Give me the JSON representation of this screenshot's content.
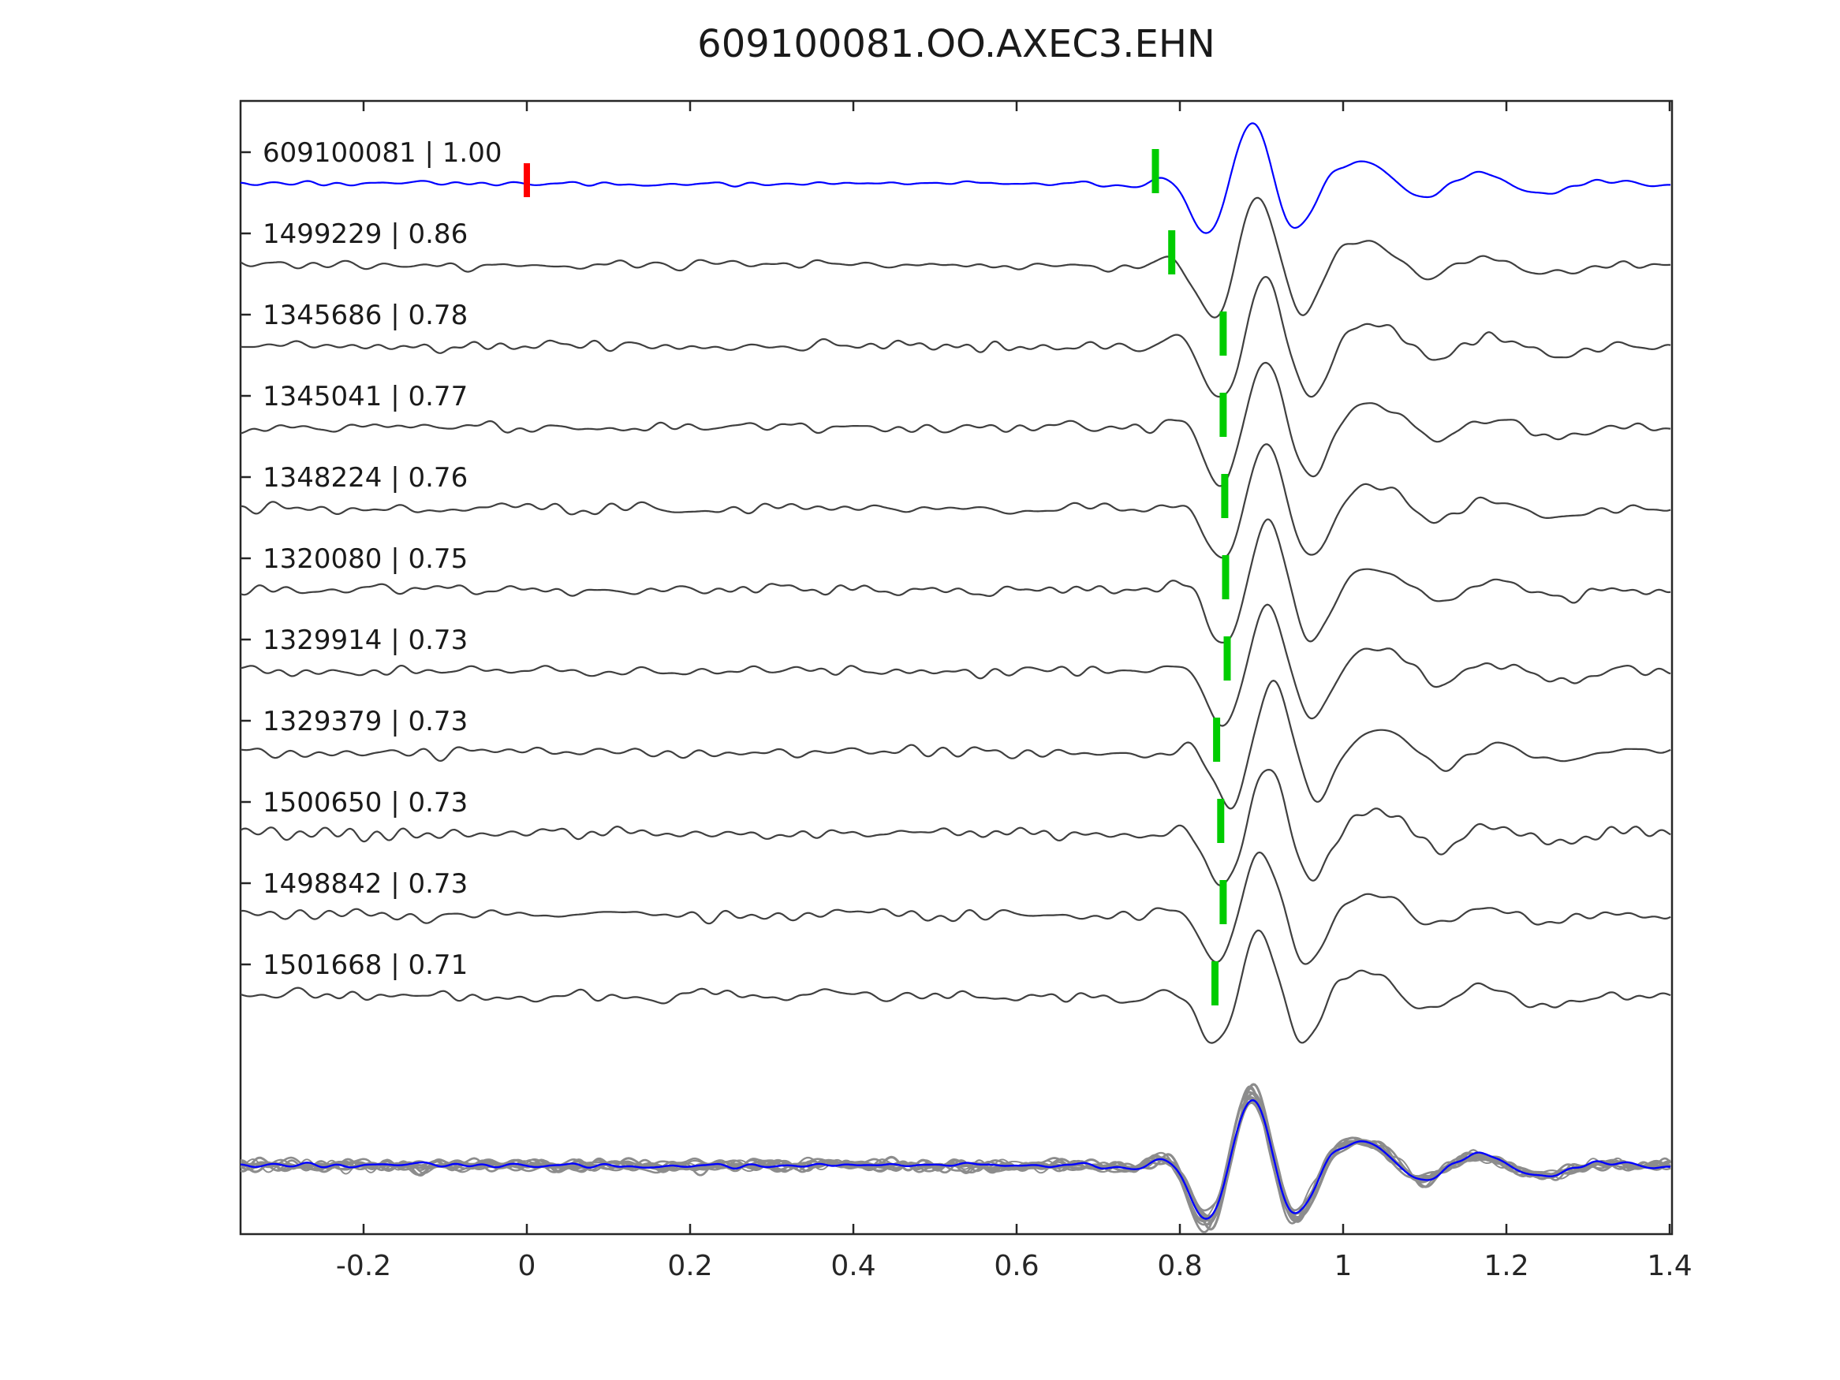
{
  "title": "609100081.OO.AXEC3.EHN",
  "colors": {
    "reference_trace": "#0000ff",
    "match_trace": "#3f3f3f",
    "overlay_gray": "#8c8c8c",
    "pick_marker_green": "#00cc00",
    "reference_marker_red": "#ff0000",
    "axis": "#262626",
    "background": "#ffffff"
  },
  "axis": {
    "tick_values": [
      -0.2,
      0,
      0.2,
      0.4,
      0.6,
      0.8,
      1,
      1.2,
      1.4
    ],
    "tick_labels": [
      "-0.2",
      "0",
      "0.2",
      "0.4",
      "0.6",
      "0.8",
      "1",
      "1.2",
      "1.4"
    ],
    "x_range": [
      -0.351,
      1.403
    ]
  },
  "chart_data": {
    "type": "line",
    "title": "609100081.OO.AXEC3.EHN",
    "xlabel": "",
    "ylabel": "",
    "x_range": [
      -0.351,
      1.403
    ],
    "x_ticks": [
      -0.2,
      0,
      0.2,
      0.4,
      0.6,
      0.8,
      1,
      1.2,
      1.4
    ],
    "legend": "none",
    "grid": false,
    "description": "Stacked seismic waveform traces: blue reference trace with red zero-time marker, ten gray matched-event traces each with a green pick marker near the wave packet onset, and a bottom row overlaying all traces aligned on the packet.",
    "reference_marker_x": 0.0,
    "traces": [
      {
        "label": "609100081 | 1.00",
        "id": "609100081",
        "correlation": 1.0,
        "pick_x": 0.77,
        "packet_center": 0.888,
        "is_reference": true,
        "red_marker_x": 0.0
      },
      {
        "label": "1499229 | 0.86",
        "id": "1499229",
        "correlation": 0.86,
        "pick_x": 0.79,
        "packet_center": 0.896,
        "is_reference": false
      },
      {
        "label": "1345686 | 0.78",
        "id": "1345686",
        "correlation": 0.78,
        "pick_x": 0.853,
        "packet_center": 0.905,
        "is_reference": false
      },
      {
        "label": "1345041 | 0.77",
        "id": "1345041",
        "correlation": 0.77,
        "pick_x": 0.853,
        "packet_center": 0.906,
        "is_reference": false
      },
      {
        "label": "1348224 | 0.76",
        "id": "1348224",
        "correlation": 0.76,
        "pick_x": 0.855,
        "packet_center": 0.906,
        "is_reference": false
      },
      {
        "label": "1320080 | 0.75",
        "id": "1320080",
        "correlation": 0.75,
        "pick_x": 0.856,
        "packet_center": 0.908,
        "is_reference": false
      },
      {
        "label": "1329914 | 0.73",
        "id": "1329914",
        "correlation": 0.73,
        "pick_x": 0.858,
        "packet_center": 0.908,
        "is_reference": false
      },
      {
        "label": "1329379 | 0.73",
        "id": "1329379",
        "correlation": 0.73,
        "pick_x": 0.845,
        "packet_center": 0.915,
        "is_reference": false
      },
      {
        "label": "1500650 | 0.73",
        "id": "1500650",
        "correlation": 0.73,
        "pick_x": 0.85,
        "packet_center": 0.908,
        "is_reference": false
      },
      {
        "label": "1498842 | 0.73",
        "id": "1498842",
        "correlation": 0.73,
        "pick_x": 0.853,
        "packet_center": 0.9,
        "is_reference": false
      },
      {
        "label": "1501668 | 0.71",
        "id": "1501668",
        "correlation": 0.71,
        "pick_x": 0.843,
        "packet_center": 0.898,
        "is_reference": false
      }
    ],
    "overlay_row": {
      "includes_all_traces": true,
      "aligned_packet_center": 0.888,
      "gray_traces_count": 10,
      "blue_reference_on_top": true
    }
  }
}
